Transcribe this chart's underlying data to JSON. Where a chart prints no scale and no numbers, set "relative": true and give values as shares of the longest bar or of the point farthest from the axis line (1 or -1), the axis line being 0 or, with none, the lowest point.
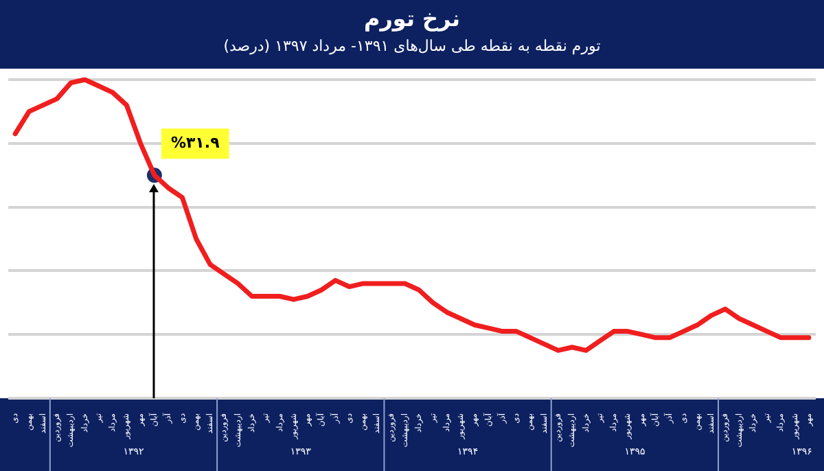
{
  "chart_data": {
    "type": "line",
    "title": "نرخ تورم",
    "subtitle": "تورم نقطه به نقطه طی سال‌های ۱۳۹۱- مرداد ۱۳۹۷ (درصد)",
    "relative": true,
    "grid": "y",
    "categories": [
      "دی",
      "بهمن",
      "اسفند",
      "فروردین",
      "اردیبهشت",
      "خرداد",
      "تیر",
      "مرداد",
      "شهریور",
      "مهر",
      "آبان",
      "آذر",
      "دی",
      "بهمن",
      "اسفند",
      "فروردین",
      "اردیبهشت",
      "خرداد",
      "تیر",
      "مرداد",
      "شهریور",
      "مهر",
      "آبان",
      "آذر",
      "دی",
      "بهمن",
      "اسفند",
      "فروردین",
      "اردیبهشت",
      "خرداد",
      "تیر",
      "مرداد",
      "شهریور",
      "مهر",
      "آبان",
      "آذر",
      "دی",
      "بهمن",
      "اسفند",
      "فروردین",
      "اردیبهشت",
      "خرداد",
      "تیر",
      "مرداد",
      "شهریور",
      "مهر",
      "آبان",
      "آذر",
      "دی",
      "بهمن",
      "اسفند",
      "فروردین",
      "اردیبهشت",
      "خرداد",
      "تیر",
      "مرداد",
      "شهریور",
      "مهر"
    ],
    "series": [
      {
        "color": "#f01e1e",
        "values": [
          0.83,
          0.9,
          0.92,
          0.94,
          0.99,
          1,
          0.98,
          0.96,
          0.92,
          0.8,
          0.7,
          0.66,
          0.63,
          0.5,
          0.42,
          0.39,
          0.36,
          0.32,
          0.32,
          0.32,
          0.31,
          0.32,
          0.34,
          0.37,
          0.35,
          0.36,
          0.36,
          0.36,
          0.36,
          0.34,
          0.3,
          0.27,
          0.25,
          0.23,
          0.22,
          0.21,
          0.21,
          0.19,
          0.17,
          0.15,
          0.16,
          0.15,
          0.18,
          0.21,
          0.21,
          0.2,
          0.19,
          0.19,
          0.21,
          0.23,
          0.26,
          0.28,
          0.25,
          0.23,
          0.21,
          0.19,
          0.19,
          0.19
        ]
      },
      {
        "type": "scatter",
        "marker": "circle",
        "color": "#1f2f6b",
        "values": [
          null,
          null,
          null,
          null,
          null,
          null,
          null,
          null,
          null,
          null,
          0.7,
          null,
          null,
          null,
          null,
          null,
          null,
          null,
          null,
          null,
          null,
          null,
          null,
          null,
          null,
          null,
          null,
          null,
          null,
          null,
          null,
          null,
          null,
          null,
          null,
          null,
          null,
          null,
          null,
          null,
          null,
          null,
          null,
          null,
          null,
          null,
          null,
          null,
          null,
          null,
          null,
          null,
          null,
          null,
          null,
          null,
          null,
          null
        ]
      }
    ],
    "annotations": [
      "۱۳۹۲",
      "۱۳۹۳",
      "۱۳۹۴",
      "۱۳۹۵",
      "۱۳۹۶",
      {
        "text": "%۳۱.۹",
        "x": "آبان",
        "y": 0.7
      }
    ]
  }
}
